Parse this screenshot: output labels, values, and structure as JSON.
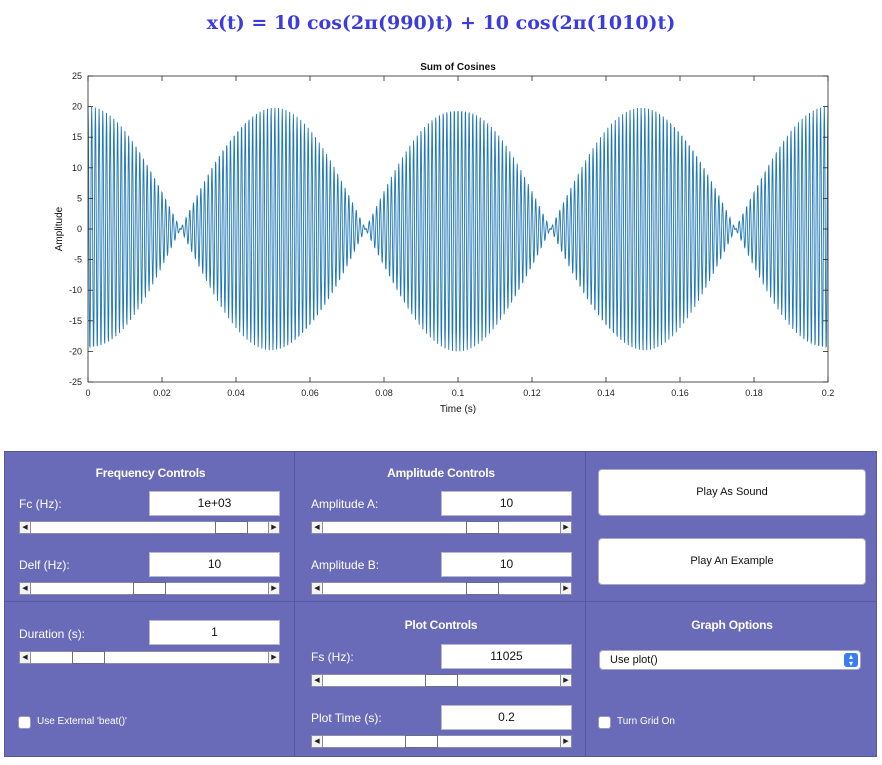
{
  "formula": "x(t) = 10 cos(2π(990)t) + 10 cos(2π(1010)t)",
  "chart_data": {
    "type": "line",
    "title": "Sum of Cosines",
    "xlabel": "Time (s)",
    "ylabel": "Amplitude",
    "xlim": [
      0,
      0.2
    ],
    "ylim": [
      -25,
      25
    ],
    "xticks": [
      "0",
      "0.02",
      "0.04",
      "0.06",
      "0.08",
      "0.1",
      "0.12",
      "0.14",
      "0.16",
      "0.18",
      "0.2"
    ],
    "yticks": [
      "25",
      "20",
      "15",
      "10",
      "5",
      "0",
      "-5",
      "-10",
      "-15",
      "-20",
      "-25"
    ],
    "grid": false,
    "series": [
      {
        "color": "#1f77b4",
        "amplitude_a": 10,
        "amplitude_b": 10,
        "freq_a": 990,
        "freq_b": 1010,
        "sample_rate": 11025
      }
    ]
  },
  "frequency": {
    "title": "Frequency Controls",
    "fc_label": "Fc (Hz):",
    "fc_value": "1e+03",
    "fc_slider": 0.9,
    "delf_label": "Delf (Hz):",
    "delf_value": "10",
    "delf_slider": 0.5
  },
  "amplitude": {
    "title": "Amplitude Controls",
    "a_label": "Amplitude A:",
    "a_value": "10",
    "a_slider": 0.7,
    "b_label": "Amplitude B:",
    "b_value": "10",
    "b_slider": 0.7
  },
  "buttons": {
    "play_sound": "Play As Sound",
    "play_example": "Play An Example"
  },
  "duration": {
    "label": "Duration (s):",
    "value": "1",
    "slider": 0.2
  },
  "plot_controls": {
    "title": "Plot Controls",
    "fs_label": "Fs (Hz):",
    "fs_value": "11025",
    "fs_slider": 0.5,
    "time_label": "Plot Time (s):",
    "time_value": "0.2",
    "time_slider": 0.4
  },
  "graph_options": {
    "title": "Graph Options",
    "plot_select": "Use plot()",
    "grid_label": "Turn Grid On"
  },
  "external": {
    "label": "Use External 'beat()'"
  }
}
